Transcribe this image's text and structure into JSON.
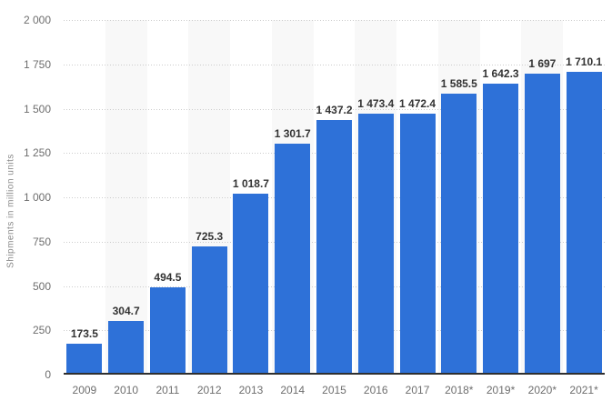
{
  "chart_data": {
    "type": "bar",
    "title": "",
    "xlabel": "",
    "ylabel": "Shipments in million units",
    "categories": [
      "2009",
      "2010",
      "2011",
      "2012",
      "2013",
      "2014",
      "2015",
      "2016",
      "2017",
      "2018*",
      "2019*",
      "2020*",
      "2021*"
    ],
    "values": [
      173.5,
      304.7,
      494.5,
      725.3,
      1018.7,
      1301.7,
      1437.2,
      1473.4,
      1472.4,
      1585.5,
      1642.3,
      1697,
      1710.1
    ],
    "value_labels": [
      "173.5",
      "304.7",
      "494.5",
      "725.3",
      "1 018.7",
      "1 301.7",
      "1 437.2",
      "1 473.4",
      "1 472.4",
      "1 585.5",
      "1 642.3",
      "1 697",
      "1 710.1"
    ],
    "y_ticks": [
      {
        "value": 0,
        "label": "0"
      },
      {
        "value": 250,
        "label": "250"
      },
      {
        "value": 500,
        "label": "500"
      },
      {
        "value": 750,
        "label": "750"
      },
      {
        "value": 1000,
        "label": "1 000"
      },
      {
        "value": 1250,
        "label": "1 250"
      },
      {
        "value": 1500,
        "label": "1 500"
      },
      {
        "value": 1750,
        "label": "1 750"
      },
      {
        "value": 2000,
        "label": "2 000"
      }
    ],
    "ylim": [
      0,
      2000
    ],
    "grid": "horizontal dotted",
    "legend": "none",
    "layout_hints": {
      "alternating_column_bands": "behind every second category starting with 2010",
      "value_labels_position": "above bars, bold"
    },
    "colors": {
      "bar": "#2E71D8",
      "column_band": "#F8F8F8",
      "gridline": "#CCCCCC",
      "baseline": "#2F2F2F",
      "axis_text": "#6E6E6E",
      "value_text": "#333333",
      "y_title_text": "#8A8A8A",
      "background": "#FFFFFF"
    }
  }
}
